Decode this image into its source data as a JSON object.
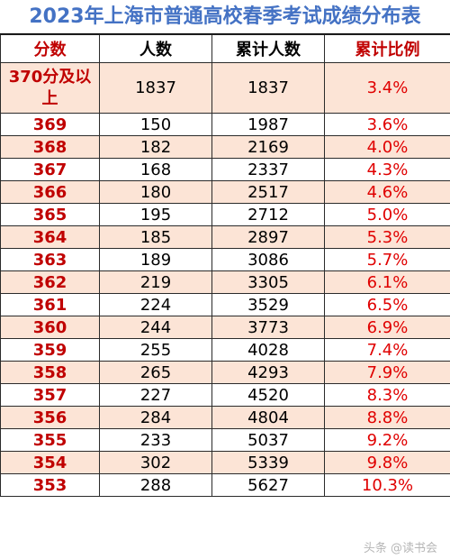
{
  "title": "2023年上海市普通高校春季考试成绩分布表",
  "headers": {
    "score": "分数",
    "count": "人数",
    "cumulative": "累计人数",
    "ratio": "累计比例"
  },
  "rows": [
    {
      "score": "370分及以上",
      "count": "1837",
      "cumulative": "1837",
      "ratio": "3.4%"
    },
    {
      "score": "369",
      "count": "150",
      "cumulative": "1987",
      "ratio": "3.6%"
    },
    {
      "score": "368",
      "count": "182",
      "cumulative": "2169",
      "ratio": "4.0%"
    },
    {
      "score": "367",
      "count": "168",
      "cumulative": "2337",
      "ratio": "4.3%"
    },
    {
      "score": "366",
      "count": "180",
      "cumulative": "2517",
      "ratio": "4.6%"
    },
    {
      "score": "365",
      "count": "195",
      "cumulative": "2712",
      "ratio": "5.0%"
    },
    {
      "score": "364",
      "count": "185",
      "cumulative": "2897",
      "ratio": "5.3%"
    },
    {
      "score": "363",
      "count": "189",
      "cumulative": "3086",
      "ratio": "5.7%"
    },
    {
      "score": "362",
      "count": "219",
      "cumulative": "3305",
      "ratio": "6.1%"
    },
    {
      "score": "361",
      "count": "224",
      "cumulative": "3529",
      "ratio": "6.5%"
    },
    {
      "score": "360",
      "count": "244",
      "cumulative": "3773",
      "ratio": "6.9%"
    },
    {
      "score": "359",
      "count": "255",
      "cumulative": "4028",
      "ratio": "7.4%"
    },
    {
      "score": "358",
      "count": "265",
      "cumulative": "4293",
      "ratio": "7.9%"
    },
    {
      "score": "357",
      "count": "227",
      "cumulative": "4520",
      "ratio": "8.3%"
    },
    {
      "score": "356",
      "count": "284",
      "cumulative": "4804",
      "ratio": "8.8%"
    },
    {
      "score": "355",
      "count": "233",
      "cumulative": "5037",
      "ratio": "9.2%"
    },
    {
      "score": "354",
      "count": "302",
      "cumulative": "5339",
      "ratio": "9.8%"
    },
    {
      "score": "353",
      "count": "288",
      "cumulative": "5627",
      "ratio": "10.3%"
    }
  ],
  "watermark": "头条 @读书会"
}
